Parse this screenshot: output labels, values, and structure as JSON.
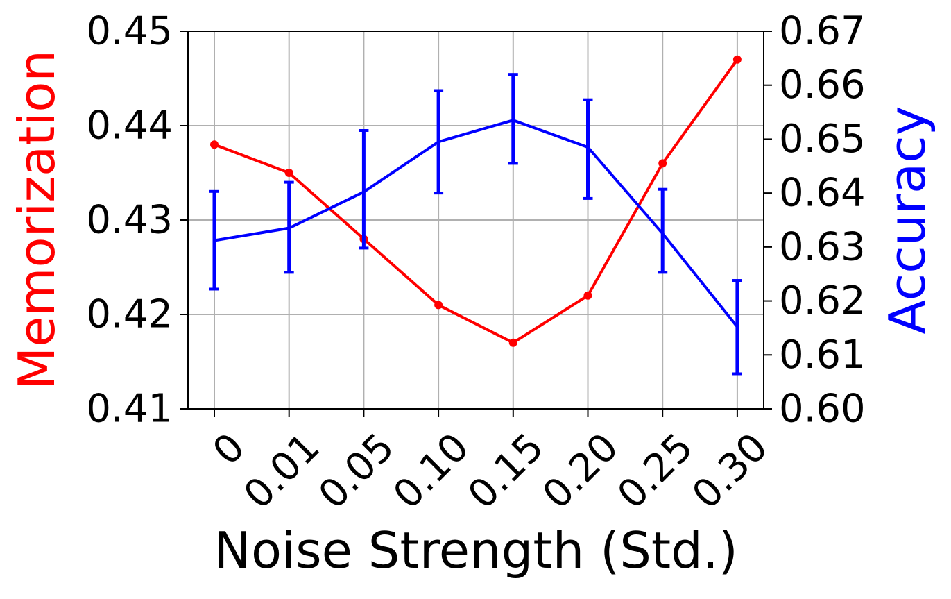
{
  "chart_data": {
    "type": "line",
    "xlabel": "Noise Strength (Std.)",
    "categories": [
      "0",
      "0.01",
      "0.05",
      "0.10",
      "0.15",
      "0.20",
      "0.25",
      "0.30"
    ],
    "y_left": {
      "label": "Memorization",
      "color": "#ff0000",
      "ylim": [
        0.41,
        0.45
      ],
      "ticks": [
        0.41,
        0.42,
        0.43,
        0.44,
        0.45
      ],
      "tick_labels": [
        "0.41",
        "0.42",
        "0.43",
        "0.44",
        "0.45"
      ]
    },
    "y_right": {
      "label": "Accuracy",
      "color": "#0000ff",
      "ylim": [
        0.6,
        0.67
      ],
      "ticks": [
        0.6,
        0.61,
        0.62,
        0.63,
        0.64,
        0.65,
        0.66,
        0.67
      ],
      "tick_labels": [
        "0.60",
        "0.61",
        "0.62",
        "0.63",
        "0.64",
        "0.65",
        "0.66",
        "0.67"
      ]
    },
    "series": [
      {
        "axis": "left",
        "color": "#ff0000",
        "marker": "dot",
        "values": [
          0.438,
          0.435,
          0.428,
          0.421,
          0.417,
          0.422,
          0.436,
          0.447
        ]
      },
      {
        "axis": "right",
        "color": "#0000ff",
        "marker": "none",
        "values": [
          0.6312,
          0.6335,
          0.6402,
          0.6495,
          0.6535,
          0.6485,
          0.6325,
          0.6152
        ],
        "error_low": [
          0.6222,
          0.6253,
          0.6298,
          0.64,
          0.6455,
          0.639,
          0.6253,
          0.6065
        ],
        "error_high": [
          0.6403,
          0.642,
          0.6516,
          0.659,
          0.662,
          0.6573,
          0.6407,
          0.6238
        ]
      }
    ],
    "grid": true,
    "legend": "none"
  }
}
